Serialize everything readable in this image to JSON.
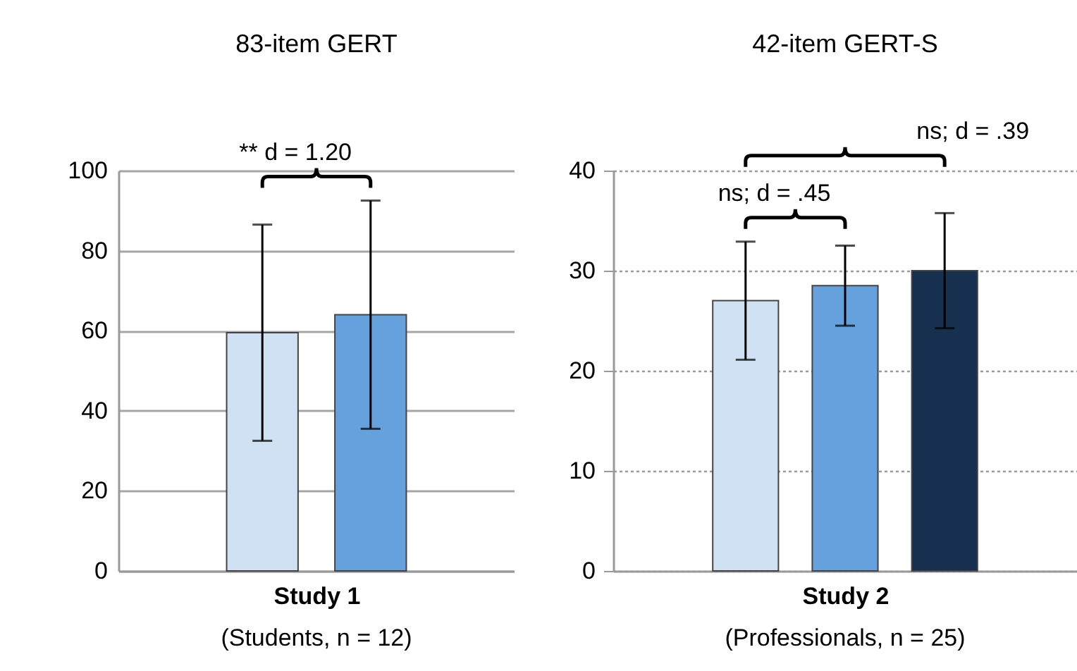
{
  "chart_data": [
    {
      "type": "bar",
      "title": "83-item GERT",
      "xlabel": "Study 1",
      "categories": [
        null,
        null
      ],
      "values": [
        59.5,
        64
      ],
      "errors": [
        27,
        28.5
      ],
      "colors": [
        "#d0e1f3",
        "#65a1dd"
      ],
      "ylim": [
        0,
        100
      ],
      "yticks": [
        0,
        20,
        40,
        60,
        80,
        100
      ],
      "grid": "y",
      "annotations": [
        "(Students, n = 12)",
        "** d = 1.20"
      ]
    },
    {
      "type": "bar",
      "title": "42-item GERT-S",
      "xlabel": "Study 2",
      "categories": [
        null,
        null,
        null
      ],
      "values": [
        27,
        28.5,
        30
      ],
      "errors": [
        5.9,
        4,
        5.75
      ],
      "colors": [
        "#d0e1f3",
        "#65a1dd",
        "#17304f"
      ],
      "ylim": [
        0,
        40
      ],
      "yticks": [
        0,
        10,
        20,
        30,
        40
      ],
      "grid": "y",
      "annotations": [
        "(Professionals, n = 25)",
        "ns; d = .45",
        "ns; d = .39"
      ]
    }
  ]
}
